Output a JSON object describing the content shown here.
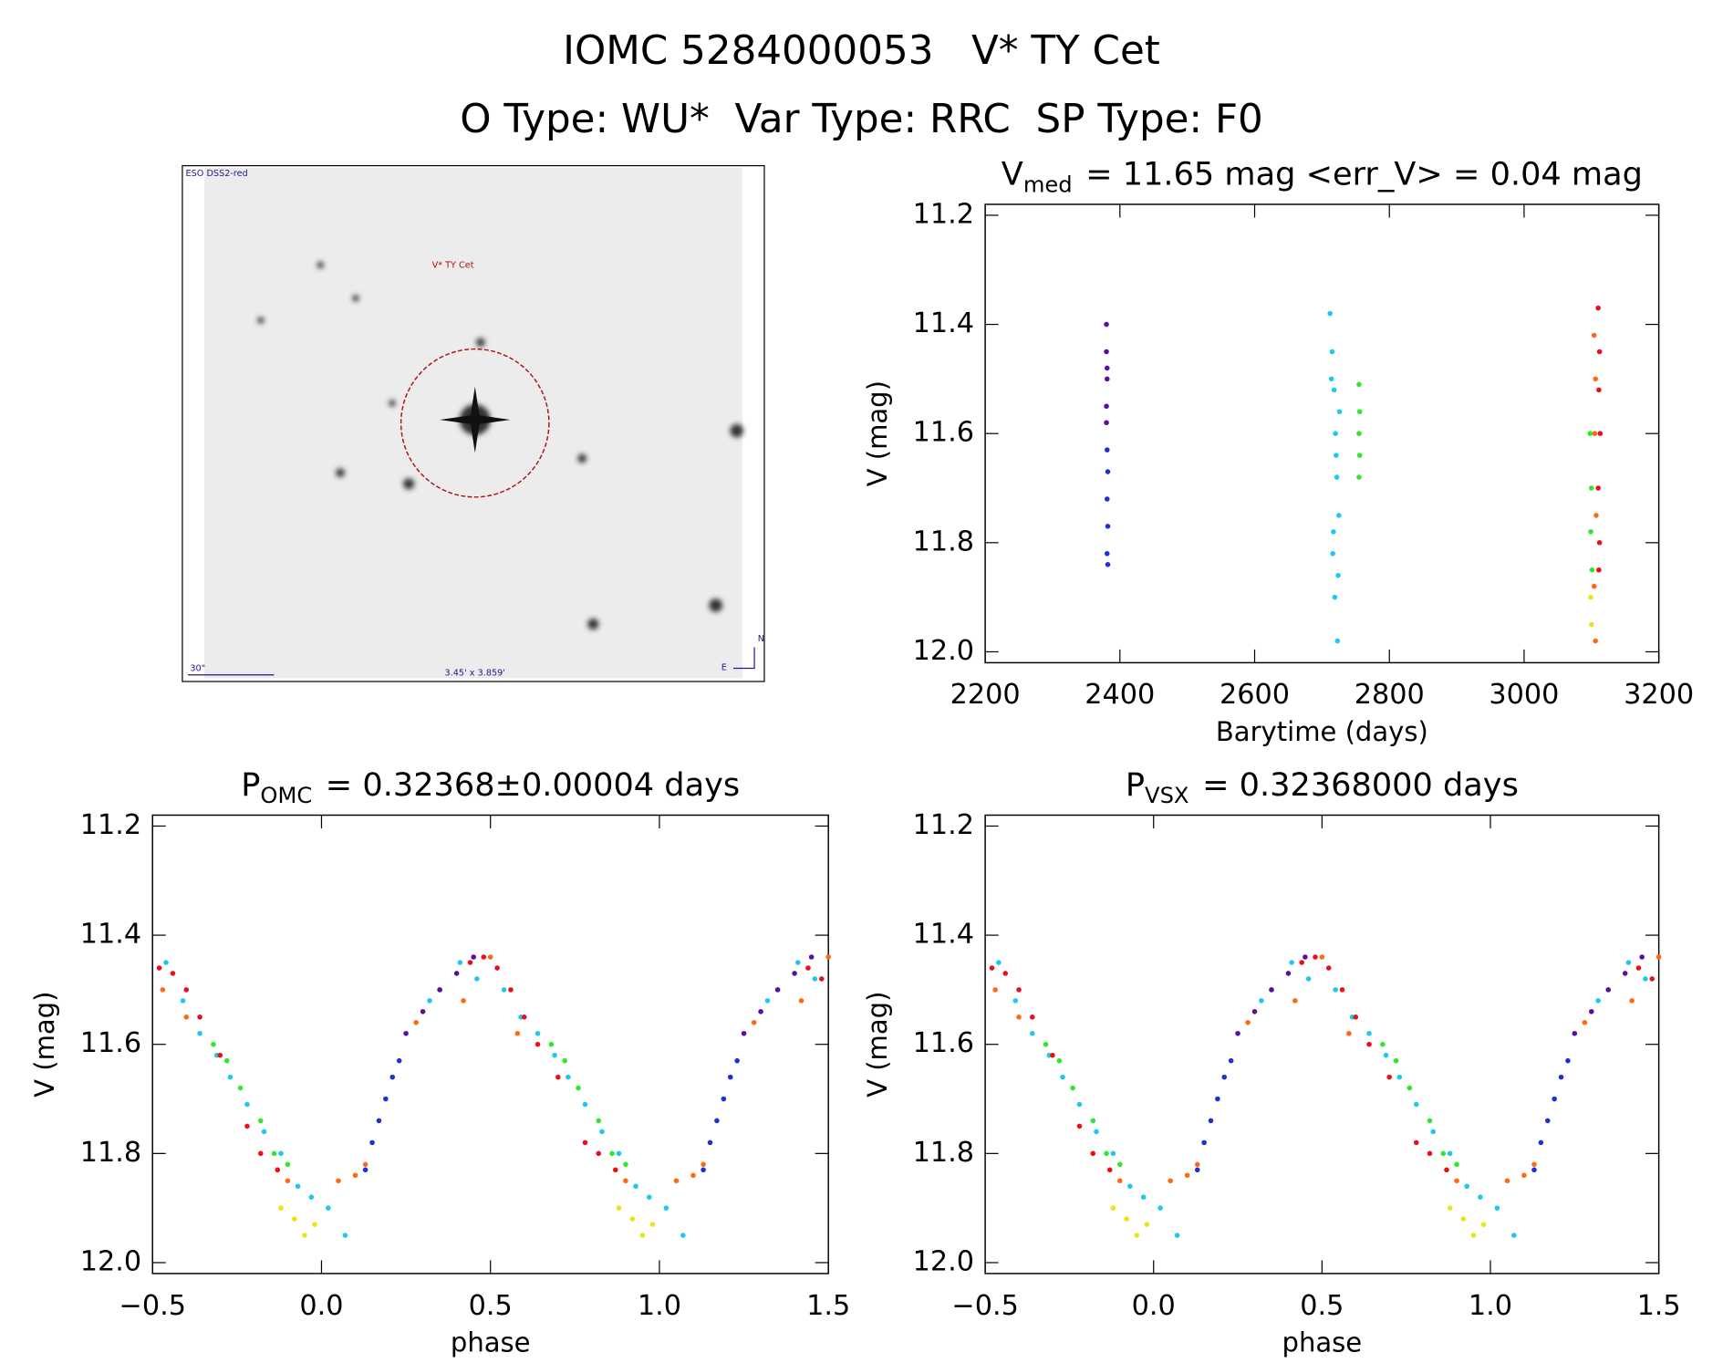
{
  "header": {
    "title": "IOMC 5284000053   V* TY Cet",
    "subtitle": "O Type: WU*  Var Type: RRC  SP Type: F0"
  },
  "image": {
    "survey": "ESO DSS2-red",
    "target": "V* TY Cet",
    "scale": "30\"",
    "size": "3.45' x 3.859'",
    "east": "E",
    "north": "N"
  },
  "chart_data": [
    {
      "type": "scatter",
      "title": {
        "main": "V",
        "sub": "med",
        "rest": "= 11.65 mag <err_V> = 0.04 mag"
      },
      "x_label": "Barytime (days)",
      "y_label": "V (mag)",
      "xlim": [
        2200,
        3200
      ],
      "xticks": [
        2200,
        2400,
        2600,
        2800,
        3000,
        3200
      ],
      "ylim": [
        12.02,
        11.18
      ],
      "yticks": [
        11.2,
        11.4,
        11.6,
        11.8,
        {
          "value": 12,
          "label": "12.0"
        }
      ],
      "series": [
        {
          "color": "#5b0fa0",
          "x": [
            2380,
            2380,
            2381,
            2380,
            2381,
            2380
          ],
          "values": [
            11.4,
            11.45,
            11.5,
            11.55,
            11.48,
            11.58
          ]
        },
        {
          "color": "#1f2fd6",
          "x": [
            2381,
            2382,
            2381,
            2382,
            2381,
            2382
          ],
          "values": [
            11.63,
            11.67,
            11.72,
            11.77,
            11.82,
            11.84
          ]
        },
        {
          "color": "#1ec8f0",
          "x": [
            2712,
            2715,
            2718,
            2720,
            2722,
            2725,
            2716,
            2719,
            2723,
            2714,
            2721,
            2717,
            2724,
            2726
          ],
          "values": [
            11.38,
            11.45,
            11.52,
            11.6,
            11.68,
            11.75,
            11.82,
            11.9,
            11.98,
            11.5,
            11.64,
            11.78,
            11.86,
            11.56
          ]
        },
        {
          "color": "#2ee82e",
          "x": [
            2755,
            2756,
            2755,
            2756,
            2755,
            3098,
            3100,
            3099,
            3101
          ],
          "values": [
            11.51,
            11.56,
            11.6,
            11.64,
            11.68,
            11.6,
            11.7,
            11.78,
            11.85
          ]
        },
        {
          "color": "#e6e61a",
          "x": [
            3099,
            3100
          ],
          "values": [
            11.9,
            11.95
          ]
        },
        {
          "color": "#ff6a10",
          "x": [
            3104,
            3106,
            3105,
            3107,
            3104,
            3106
          ],
          "values": [
            11.42,
            11.5,
            11.6,
            11.75,
            11.88,
            11.98
          ]
        },
        {
          "color": "#e8101a",
          "x": [
            3110,
            3112,
            3111,
            3113,
            3110,
            3112,
            3111
          ],
          "values": [
            11.37,
            11.45,
            11.52,
            11.6,
            11.7,
            11.8,
            11.85
          ]
        }
      ]
    },
    {
      "type": "scatter",
      "title": {
        "main": "P",
        "sub": "OMC",
        "rest": "= 0.32368±0.00004 days"
      },
      "x_label": "phase",
      "y_label": "V (mag)",
      "xlim": [
        -0.5,
        1.5
      ],
      "xticks": [
        {
          "value": -0.5,
          "label": "−0.5"
        },
        {
          "value": 0,
          "label": "0.0"
        },
        0.5,
        {
          "value": 1,
          "label": "1.0"
        },
        1.5
      ],
      "ylim": [
        12.02,
        11.18
      ],
      "yticks": [
        11.2,
        11.4,
        11.6,
        11.8,
        {
          "value": 12,
          "label": "12.0"
        }
      ],
      "series": [
        {
          "color": "#1ec8f0",
          "x": [
            -0.46,
            -0.41,
            -0.36,
            -0.31,
            -0.27,
            -0.22,
            -0.17,
            -0.12,
            -0.07,
            -0.03,
            0.02,
            0.07,
            0.32,
            0.41,
            0.46,
            0.54,
            0.59,
            0.64,
            0.69,
            0.73,
            0.78,
            0.83,
            0.88,
            0.93,
            0.97,
            1.02,
            1.07,
            1.32,
            1.41,
            1.46
          ],
          "values": [
            11.45,
            11.52,
            11.58,
            11.62,
            11.66,
            11.71,
            11.76,
            11.8,
            11.86,
            11.88,
            11.9,
            11.95,
            11.52,
            11.45,
            11.48,
            11.5,
            11.55,
            11.58,
            11.62,
            11.66,
            11.71,
            11.76,
            11.8,
            11.86,
            11.88,
            11.9,
            11.95,
            11.52,
            11.45,
            11.48
          ]
        },
        {
          "color": "#e8101a",
          "x": [
            -0.48,
            -0.44,
            -0.4,
            -0.36,
            -0.3,
            -0.22,
            -0.18,
            -0.13,
            0.44,
            0.48,
            0.52,
            0.56,
            0.6,
            0.64,
            0.7,
            0.78,
            0.82,
            0.87,
            1.44,
            1.48
          ],
          "values": [
            11.46,
            11.47,
            11.5,
            11.55,
            11.62,
            11.75,
            11.8,
            11.83,
            11.45,
            11.44,
            11.46,
            11.5,
            11.55,
            11.6,
            11.66,
            11.78,
            11.8,
            11.83,
            11.46,
            11.48
          ]
        },
        {
          "color": "#2ee82e",
          "x": [
            -0.32,
            -0.28,
            -0.24,
            -0.18,
            -0.14,
            -0.1,
            0.68,
            0.72,
            0.76,
            0.82,
            0.86,
            0.9
          ],
          "values": [
            11.6,
            11.63,
            11.68,
            11.74,
            11.8,
            11.82,
            11.6,
            11.63,
            11.68,
            11.74,
            11.8,
            11.82
          ]
        },
        {
          "color": "#e6e61a",
          "x": [
            -0.12,
            -0.08,
            -0.05,
            -0.02,
            0.88,
            0.92,
            0.95,
            0.98
          ],
          "values": [
            11.9,
            11.92,
            11.95,
            11.93,
            11.9,
            11.92,
            11.95,
            11.93
          ]
        },
        {
          "color": "#ff6a10",
          "x": [
            -0.47,
            -0.4,
            -0.1,
            0.05,
            0.1,
            0.13,
            0.28,
            0.35,
            0.42,
            0.5,
            0.58,
            0.9,
            1.05,
            1.1,
            1.13,
            1.28,
            1.35,
            1.42,
            1.5
          ],
          "values": [
            11.5,
            11.55,
            11.85,
            11.85,
            11.84,
            11.82,
            11.56,
            11.5,
            11.52,
            11.44,
            11.58,
            11.85,
            11.85,
            11.84,
            11.82,
            11.56,
            11.5,
            11.52,
            11.44
          ]
        },
        {
          "color": "#1f2fd6",
          "x": [
            0.13,
            0.15,
            0.17,
            0.19,
            0.21,
            0.23,
            1.13,
            1.15,
            1.17,
            1.19,
            1.21,
            1.23
          ],
          "values": [
            11.83,
            11.78,
            11.74,
            11.7,
            11.66,
            11.63,
            11.83,
            11.78,
            11.74,
            11.7,
            11.66,
            11.63
          ]
        },
        {
          "color": "#5b0fa0",
          "x": [
            0.25,
            0.3,
            0.35,
            0.4,
            0.45,
            1.25,
            1.3,
            1.35,
            1.4,
            1.45
          ],
          "values": [
            11.58,
            11.54,
            11.5,
            11.47,
            11.44,
            11.58,
            11.54,
            11.5,
            11.47,
            11.44
          ]
        }
      ]
    },
    {
      "type": "scatter",
      "title": {
        "main": "P",
        "sub": "VSX",
        "rest": "= 0.32368000 days"
      },
      "x_label": "phase",
      "y_label": "V (mag)",
      "xlim": [
        -0.5,
        1.5
      ],
      "xticks": [
        {
          "value": -0.5,
          "label": "−0.5"
        },
        {
          "value": 0,
          "label": "0.0"
        },
        0.5,
        {
          "value": 1,
          "label": "1.0"
        },
        1.5
      ],
      "ylim": [
        12.02,
        11.18
      ],
      "yticks": [
        11.2,
        11.4,
        11.6,
        11.8,
        {
          "value": 12,
          "label": "12.0"
        }
      ],
      "series": [
        {
          "color": "#1ec8f0",
          "x": [
            -0.46,
            -0.41,
            -0.36,
            -0.31,
            -0.27,
            -0.22,
            -0.17,
            -0.12,
            -0.07,
            -0.03,
            0.02,
            0.07,
            0.32,
            0.41,
            0.46,
            0.54,
            0.59,
            0.64,
            0.69,
            0.73,
            0.78,
            0.83,
            0.88,
            0.93,
            0.97,
            1.02,
            1.07,
            1.32,
            1.41,
            1.46
          ],
          "values": [
            11.45,
            11.52,
            11.58,
            11.62,
            11.66,
            11.71,
            11.76,
            11.8,
            11.86,
            11.88,
            11.9,
            11.95,
            11.52,
            11.45,
            11.48,
            11.5,
            11.55,
            11.58,
            11.62,
            11.66,
            11.71,
            11.76,
            11.8,
            11.86,
            11.88,
            11.9,
            11.95,
            11.52,
            11.45,
            11.48
          ]
        },
        {
          "color": "#e8101a",
          "x": [
            -0.48,
            -0.44,
            -0.4,
            -0.36,
            -0.3,
            -0.22,
            -0.18,
            -0.13,
            0.44,
            0.48,
            0.52,
            0.56,
            0.6,
            0.64,
            0.7,
            0.78,
            0.82,
            0.87,
            1.44,
            1.48
          ],
          "values": [
            11.46,
            11.47,
            11.5,
            11.55,
            11.62,
            11.75,
            11.8,
            11.83,
            11.45,
            11.44,
            11.46,
            11.5,
            11.55,
            11.6,
            11.66,
            11.78,
            11.8,
            11.83,
            11.46,
            11.48
          ]
        },
        {
          "color": "#2ee82e",
          "x": [
            -0.32,
            -0.28,
            -0.24,
            -0.18,
            -0.14,
            -0.1,
            0.68,
            0.72,
            0.76,
            0.82,
            0.86,
            0.9
          ],
          "values": [
            11.6,
            11.63,
            11.68,
            11.74,
            11.8,
            11.82,
            11.6,
            11.63,
            11.68,
            11.74,
            11.8,
            11.82
          ]
        },
        {
          "color": "#e6e61a",
          "x": [
            -0.12,
            -0.08,
            -0.05,
            -0.02,
            0.88,
            0.92,
            0.95,
            0.98
          ],
          "values": [
            11.9,
            11.92,
            11.95,
            11.93,
            11.9,
            11.92,
            11.95,
            11.93
          ]
        },
        {
          "color": "#ff6a10",
          "x": [
            -0.47,
            -0.4,
            -0.1,
            0.05,
            0.1,
            0.13,
            0.28,
            0.35,
            0.42,
            0.5,
            0.58,
            0.9,
            1.05,
            1.1,
            1.13,
            1.28,
            1.35,
            1.42,
            1.5
          ],
          "values": [
            11.5,
            11.55,
            11.85,
            11.85,
            11.84,
            11.82,
            11.56,
            11.5,
            11.52,
            11.44,
            11.58,
            11.85,
            11.85,
            11.84,
            11.82,
            11.56,
            11.5,
            11.52,
            11.44
          ]
        },
        {
          "color": "#1f2fd6",
          "x": [
            0.13,
            0.15,
            0.17,
            0.19,
            0.21,
            0.23,
            1.13,
            1.15,
            1.17,
            1.19,
            1.21,
            1.23
          ],
          "values": [
            11.83,
            11.78,
            11.74,
            11.7,
            11.66,
            11.63,
            11.83,
            11.78,
            11.74,
            11.7,
            11.66,
            11.63
          ]
        },
        {
          "color": "#5b0fa0",
          "x": [
            0.25,
            0.3,
            0.35,
            0.4,
            0.45,
            1.25,
            1.3,
            1.35,
            1.4,
            1.45
          ],
          "values": [
            11.58,
            11.54,
            11.5,
            11.47,
            11.44,
            11.58,
            11.54,
            11.5,
            11.47,
            11.44
          ]
        }
      ]
    }
  ]
}
